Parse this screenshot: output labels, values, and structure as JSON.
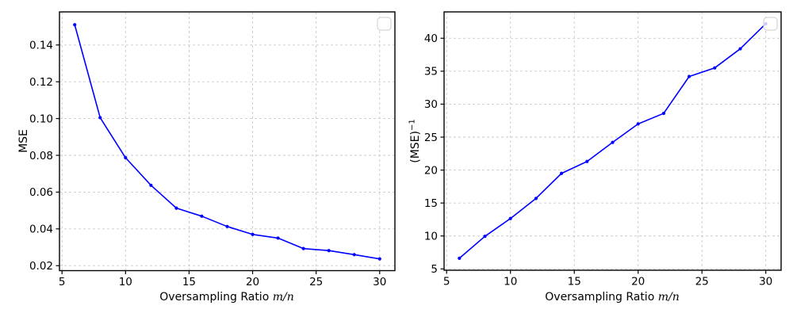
{
  "figure": {
    "background": "#ffffff",
    "spine_color": "#000000",
    "text_color": "#000000"
  },
  "chart_data": [
    {
      "name": "mse-vs-oversampling",
      "type": "line",
      "title": "",
      "xlabel": "Oversampling Ratio m/n",
      "xlabel_prefix": "Oversampling Ratio ",
      "xlabel_math": "m/n",
      "ylabel": "MSE",
      "x": [
        6,
        8,
        10,
        12,
        14,
        16,
        18,
        20,
        22,
        24,
        26,
        28,
        30
      ],
      "y": [
        0.151,
        0.1005,
        0.0787,
        0.0637,
        0.0513,
        0.0469,
        0.0413,
        0.037,
        0.035,
        0.0293,
        0.0282,
        0.026,
        0.0237
      ],
      "xlim": [
        4.8,
        31.2
      ],
      "ylim": [
        0.0173,
        0.158
      ],
      "xticks": [
        5,
        10,
        15,
        20,
        25,
        30
      ],
      "xtick_labels": [
        "5",
        "10",
        "15",
        "20",
        "25",
        "30"
      ],
      "yticks": [
        0.02,
        0.04,
        0.06,
        0.08,
        0.1,
        0.12,
        0.14
      ],
      "ytick_labels": [
        "0.02",
        "0.04",
        "0.06",
        "0.08",
        "0.10",
        "0.12",
        "0.14"
      ],
      "grid": true,
      "grid_style": "dashed",
      "grid_color": "#c9c9c9",
      "line_color": "#0000ff",
      "marker": "dot",
      "legend": "empty-box-top-right"
    },
    {
      "name": "inverse-mse-vs-oversampling",
      "type": "line",
      "title": "",
      "xlabel": "Oversampling Ratio m/n",
      "xlabel_prefix": "Oversampling Ratio ",
      "xlabel_math": "m/n",
      "ylabel": "(MSE)⁻¹",
      "ylabel_base": "(MSE)",
      "ylabel_sup": "−1",
      "x": [
        6,
        8,
        10,
        12,
        14,
        16,
        18,
        20,
        22,
        24,
        26,
        28,
        30
      ],
      "y": [
        6.62,
        9.95,
        12.65,
        15.7,
        19.5,
        21.3,
        24.2,
        27.0,
        28.6,
        34.2,
        35.5,
        38.4,
        42.2
      ],
      "xlim": [
        4.8,
        31.2
      ],
      "ylim": [
        4.8,
        44.0
      ],
      "xticks": [
        5,
        10,
        15,
        20,
        25,
        30
      ],
      "xtick_labels": [
        "5",
        "10",
        "15",
        "20",
        "25",
        "30"
      ],
      "yticks": [
        5,
        10,
        15,
        20,
        25,
        30,
        35,
        40
      ],
      "ytick_labels": [
        "5",
        "10",
        "15",
        "20",
        "25",
        "30",
        "35",
        "40"
      ],
      "grid": true,
      "grid_style": "dashed",
      "grid_color": "#c9c9c9",
      "line_color": "#0000ff",
      "marker": "dot",
      "legend": "empty-box-top-right"
    }
  ]
}
